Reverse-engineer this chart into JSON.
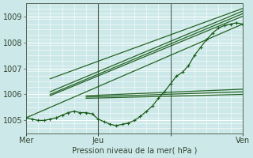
{
  "xlabel": "Pression niveau de la mer( hPa )",
  "xlim": [
    0,
    72
  ],
  "ylim": [
    1004.5,
    1009.5
  ],
  "yticks": [
    1005,
    1006,
    1007,
    1008,
    1009
  ],
  "xtick_positions": [
    0,
    24,
    48,
    72
  ],
  "xtick_labels": [
    "Mer",
    "Jeu",
    "",
    "Ven"
  ],
  "vlines": [
    24,
    48
  ],
  "bg_color": "#cce8e8",
  "grid_color": "#aacccc",
  "line_color": "#1a5c1a",
  "straight_lines": [
    {
      "x0": 0,
      "y0": 1005.1,
      "x1": 72,
      "y1": 1008.7
    },
    {
      "x0": 8,
      "y0": 1005.95,
      "x1": 72,
      "y1": 1009.0
    },
    {
      "x0": 8,
      "y0": 1006.0,
      "x1": 72,
      "y1": 1009.1
    },
    {
      "x0": 8,
      "y0": 1006.1,
      "x1": 72,
      "y1": 1009.2
    },
    {
      "x0": 8,
      "y0": 1006.6,
      "x1": 72,
      "y1": 1009.3
    },
    {
      "x0": 20,
      "y0": 1005.85,
      "x1": 72,
      "y1": 1006.0
    },
    {
      "x0": 20,
      "y0": 1005.9,
      "x1": 72,
      "y1": 1006.1
    },
    {
      "x0": 20,
      "y0": 1005.95,
      "x1": 72,
      "y1": 1006.2
    }
  ],
  "main_x": [
    0,
    2,
    4,
    6,
    8,
    10,
    12,
    14,
    16,
    18,
    20,
    22,
    24,
    26,
    28,
    30,
    32,
    34,
    36,
    38,
    40,
    42,
    44,
    46,
    48,
    50,
    52,
    54,
    56,
    58,
    60,
    62,
    64,
    66,
    68,
    70,
    72
  ],
  "main_y": [
    1005.1,
    1005.05,
    1005.0,
    1005.0,
    1005.05,
    1005.1,
    1005.2,
    1005.3,
    1005.35,
    1005.3,
    1005.3,
    1005.25,
    1005.05,
    1004.95,
    1004.85,
    1004.8,
    1004.85,
    1004.9,
    1005.0,
    1005.15,
    1005.35,
    1005.55,
    1005.85,
    1006.1,
    1006.4,
    1006.7,
    1006.85,
    1007.1,
    1007.5,
    1007.8,
    1008.1,
    1008.35,
    1008.55,
    1008.65,
    1008.7,
    1008.75,
    1008.7
  ],
  "marker_x_indices": [
    0,
    2,
    4,
    6,
    8,
    10,
    12,
    14,
    16,
    18,
    20,
    22,
    24,
    26,
    28,
    30,
    32,
    34,
    36,
    38,
    40,
    42,
    44,
    46,
    48,
    50,
    52,
    54,
    56,
    58,
    60,
    62,
    64,
    66,
    68,
    70,
    72
  ],
  "figsize": [
    3.2,
    2.0
  ],
  "dpi": 100
}
